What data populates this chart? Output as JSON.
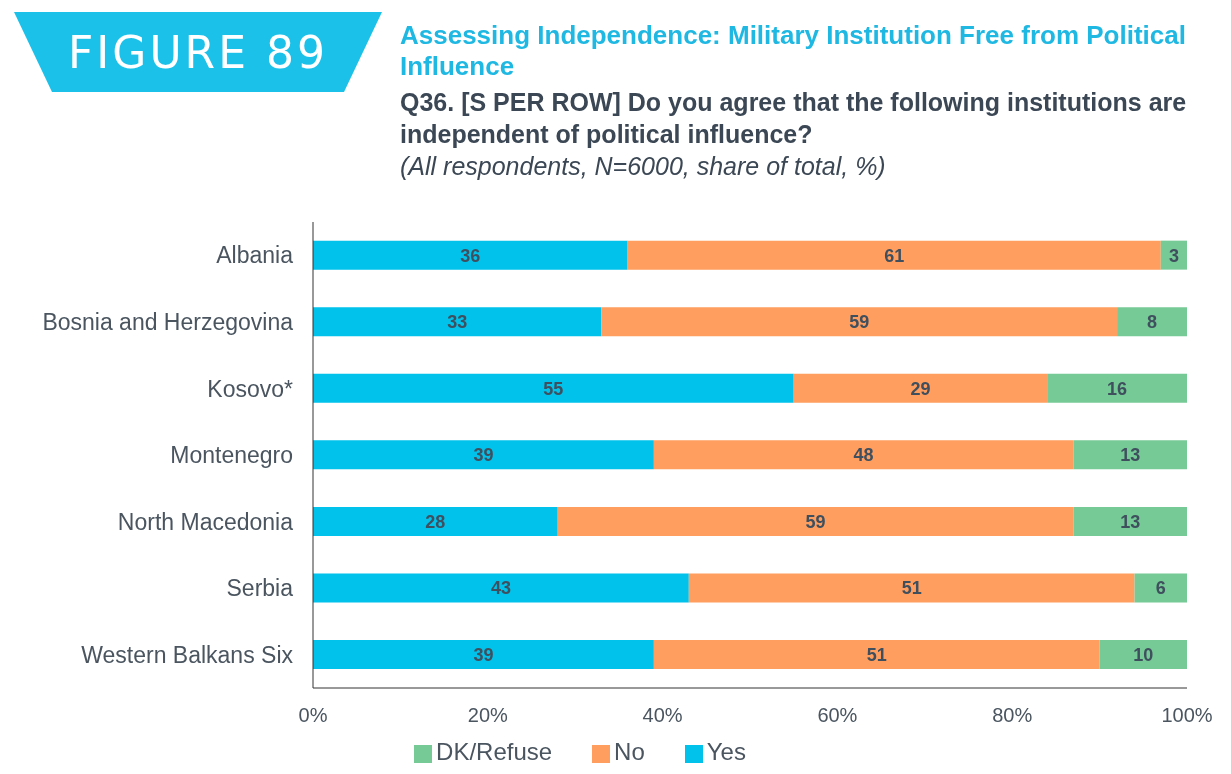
{
  "chart_data": {
    "type": "bar",
    "orientation": "horizontal",
    "stacked": true,
    "title": "Assessing Independence: Military Institution Free from Political Influence",
    "subtitle": "Q36. [S PER ROW] Do you agree that the following institutions are independent of political influence?",
    "annotations": [
      "FIGURE 89",
      "(All respondents, N=6000, share of total, %)"
    ],
    "categories": [
      "Albania",
      "Bosnia and Herzegovina",
      "Kosovo*",
      "Montenegro",
      "North Macedonia",
      "Serbia",
      "Western Balkans Six"
    ],
    "series": [
      {
        "name": "Yes",
        "color": "#00c2eb",
        "values": [
          36,
          33,
          55,
          39,
          28,
          43,
          39
        ]
      },
      {
        "name": "No",
        "color": "#ff9e5e",
        "values": [
          61,
          59,
          29,
          48,
          59,
          51,
          51
        ]
      },
      {
        "name": "DK/Refuse",
        "color": "#76ca96",
        "values": [
          3,
          8,
          16,
          13,
          13,
          6,
          10
        ]
      }
    ],
    "xlim": [
      0,
      100
    ],
    "xticks": [
      {
        "value": 0,
        "label": "0%"
      },
      {
        "value": 20,
        "label": "20%"
      },
      {
        "value": 40,
        "label": "40%"
      },
      {
        "value": 60,
        "label": "60%"
      },
      {
        "value": 80,
        "label": "80%"
      },
      {
        "value": 100,
        "label": "100%"
      }
    ],
    "data_labels": true,
    "grid": false,
    "legend": "bottom"
  }
}
